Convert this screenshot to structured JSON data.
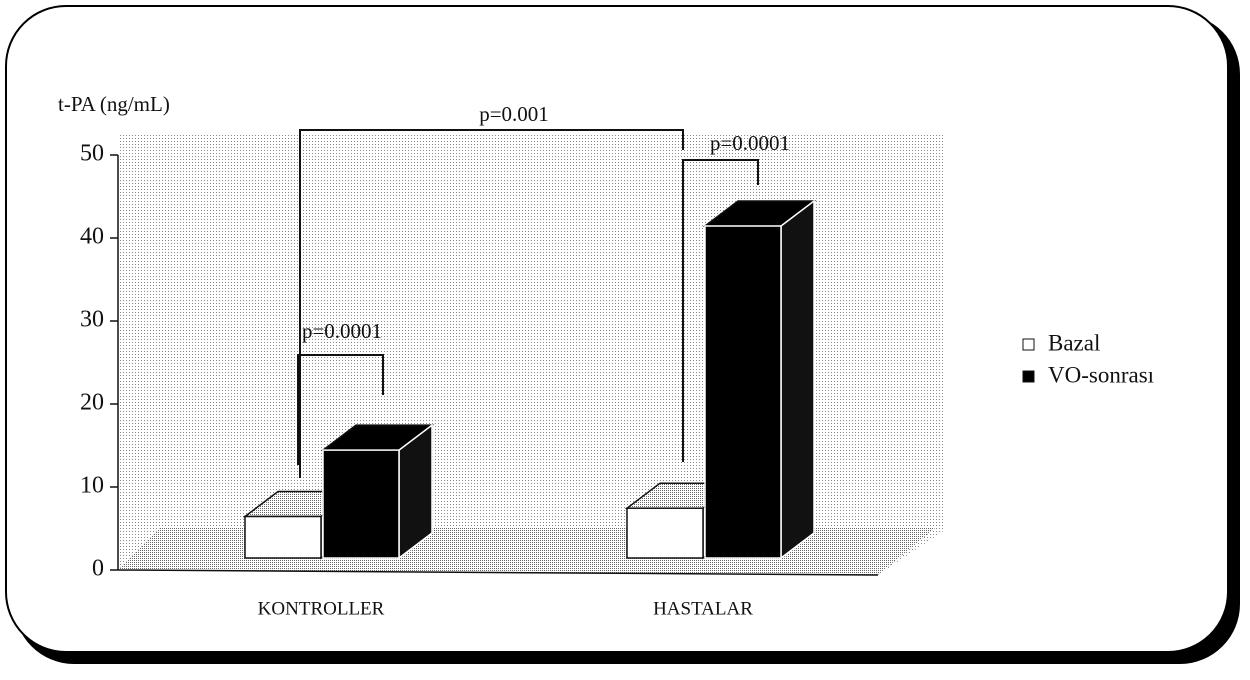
{
  "chart_data": {
    "type": "bar3d",
    "y_label": "t-PA (ng/mL)",
    "categories": [
      "KONTROLLER",
      "HASTALAR"
    ],
    "series": [
      {
        "name": "Bazal",
        "color": "#ffffff",
        "values": [
          5,
          6
        ]
      },
      {
        "name": "VO-sonrası",
        "color": "#000000",
        "values": [
          13,
          40
        ]
      }
    ],
    "ylim": [
      0,
      50
    ],
    "yticks": [
      0,
      10,
      20,
      30,
      40,
      50
    ],
    "annotations": [
      "p=0.001",
      "p=0.0001",
      "p=0.0001"
    ]
  }
}
